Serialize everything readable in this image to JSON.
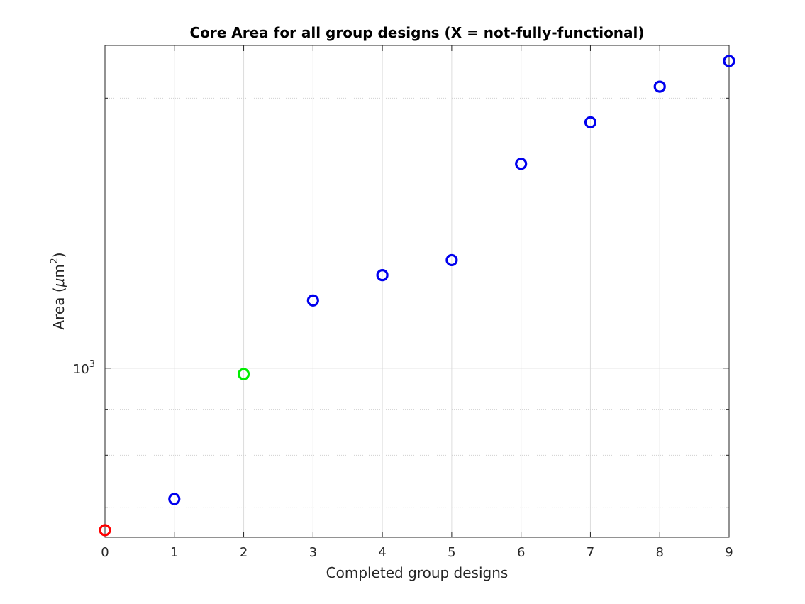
{
  "chart_data": {
    "type": "scatter",
    "title": "Core Area for all group designs (X = not-fully-functional)",
    "xlabel": "Completed group designs",
    "ylabel_prefix": "Area (",
    "ylabel_unit_greek": "μ",
    "ylabel_unit_base": "m",
    "ylabel_unit_exp": "2",
    "ylabel_suffix": ")",
    "xlim": [
      0,
      9
    ],
    "ylim": [
      648,
      2290
    ],
    "y_scale": "log",
    "grid": true,
    "x_ticks": [
      0,
      1,
      2,
      3,
      4,
      5,
      6,
      7,
      8,
      9
    ],
    "y_tick_major_base": "10",
    "y_tick_major_exp": "3",
    "y_tick_major_value": 1000,
    "points": [
      {
        "x": 0,
        "y": 660,
        "color": "#ff0000"
      },
      {
        "x": 1,
        "y": 715,
        "color": "#0000ee"
      },
      {
        "x": 2,
        "y": 985,
        "color": "#00ee00"
      },
      {
        "x": 3,
        "y": 1190,
        "color": "#0000ee"
      },
      {
        "x": 4,
        "y": 1270,
        "color": "#0000ee"
      },
      {
        "x": 5,
        "y": 1320,
        "color": "#0000ee"
      },
      {
        "x": 6,
        "y": 1690,
        "color": "#0000ee"
      },
      {
        "x": 7,
        "y": 1880,
        "color": "#0000ee"
      },
      {
        "x": 8,
        "y": 2060,
        "color": "#0000ee"
      },
      {
        "x": 9,
        "y": 2200,
        "color": "#0000ee"
      }
    ]
  }
}
